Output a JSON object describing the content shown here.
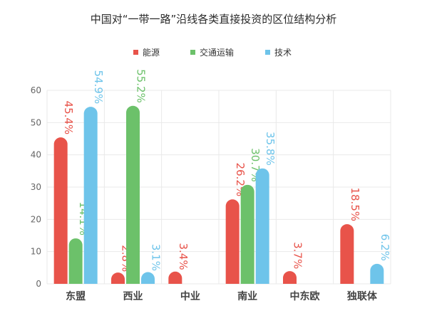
{
  "chart_data": {
    "type": "bar",
    "title": "中国对“一带一路”沿线各类直接投资的区位结构分析",
    "categories": [
      "东盟",
      "西业",
      "中业",
      "南业",
      "中东欧",
      "独联体"
    ],
    "series": [
      {
        "name": "能源",
        "color": "#e8534a",
        "values": [
          45.4,
          2.8,
          3.4,
          26.2,
          3.7,
          18.5
        ]
      },
      {
        "name": "交通运输",
        "color": "#6cc16a",
        "values": [
          14.1,
          55.2,
          null,
          30.7,
          null,
          null
        ]
      },
      {
        "name": "技术",
        "color": "#6ec4ea",
        "values": [
          54.9,
          3.1,
          null,
          35.8,
          null,
          6.2
        ]
      }
    ],
    "value_suffix": "%",
    "ylim": [
      0,
      60
    ],
    "yticks": [
      0,
      10,
      20,
      30,
      40,
      50,
      60
    ],
    "grid": true,
    "legend": "top-center",
    "xlabel": "",
    "ylabel": ""
  }
}
